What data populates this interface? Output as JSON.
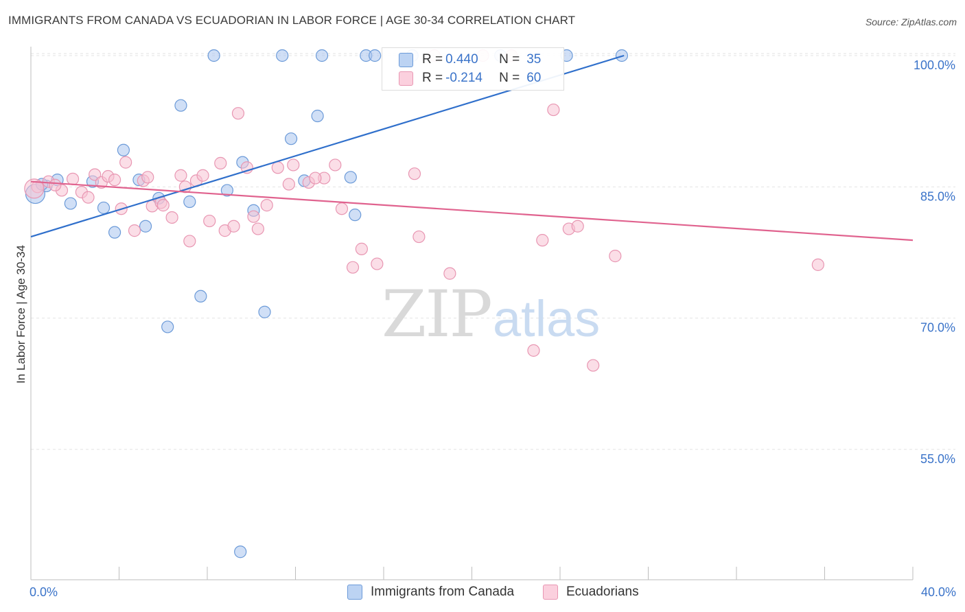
{
  "header": {
    "title": "IMMIGRANTS FROM CANADA VS ECUADORIAN IN LABOR FORCE | AGE 30-34 CORRELATION CHART",
    "source": "Source: ZipAtlas.com"
  },
  "watermark": {
    "zip": "ZIP",
    "atlas": "atlas"
  },
  "legend_top": {
    "rows": [
      {
        "r_label": "R =",
        "r_value": "0.440",
        "n_label": "N =",
        "n_value": "35"
      },
      {
        "r_label": "R =",
        "r_value": "-0.214",
        "n_label": "N =",
        "n_value": "60"
      }
    ]
  },
  "legend_bottom": {
    "items": [
      {
        "label": "Immigrants from Canada"
      },
      {
        "label": "Ecuadorians"
      }
    ]
  },
  "colors": {
    "blue_fill": "#a9c5ee",
    "blue_stroke": "#6b9ad8",
    "blue_line": "#2f6fcb",
    "pink_fill": "#f7c2d3",
    "pink_stroke": "#e896b2",
    "pink_line": "#e0628e",
    "axis_text": "#3a73c9",
    "grid": "#e3e3e3"
  },
  "chart_data": {
    "type": "scatter",
    "title": "IMMIGRANTS FROM CANADA VS ECUADORIAN IN LABOR FORCE | AGE 30-34 CORRELATION CHART",
    "xlabel": "",
    "ylabel": "In Labor Force | Age 30-34",
    "xlim": [
      0,
      40
    ],
    "ylim": [
      42,
      101.5
    ],
    "x_tick_labels": [
      "0.0%",
      "40.0%"
    ],
    "y_ticks": [
      55,
      70,
      85,
      100
    ],
    "y_tick_labels": [
      "55.0%",
      "70.0%",
      "85.0%",
      "100.0%"
    ],
    "grid": true,
    "series": [
      {
        "name": "Immigrants from Canada",
        "color": "blue",
        "r": 0.44,
        "n": 35,
        "trend": {
          "x": [
            0,
            26.9
          ],
          "y": [
            79.3,
            100.0
          ]
        },
        "points": [
          [
            0.2,
            84.2
          ],
          [
            0.7,
            85.1
          ],
          [
            1.2,
            85.8
          ],
          [
            1.8,
            83.1
          ],
          [
            2.8,
            85.6
          ],
          [
            3.3,
            82.6
          ],
          [
            3.8,
            79.8
          ],
          [
            4.2,
            89.2
          ],
          [
            4.9,
            85.8
          ],
          [
            5.2,
            80.5
          ],
          [
            5.8,
            83.7
          ],
          [
            6.2,
            69.0
          ],
          [
            6.8,
            94.3
          ],
          [
            7.2,
            83.3
          ],
          [
            7.7,
            72.5
          ],
          [
            8.3,
            100.0
          ],
          [
            8.9,
            84.6
          ],
          [
            9.5,
            43.3
          ],
          [
            9.6,
            87.8
          ],
          [
            10.1,
            82.3
          ],
          [
            10.6,
            70.7
          ],
          [
            11.4,
            100.0
          ],
          [
            11.8,
            90.5
          ],
          [
            12.4,
            85.7
          ],
          [
            13.2,
            100.0
          ],
          [
            13.0,
            93.1
          ],
          [
            14.5,
            86.1
          ],
          [
            14.7,
            81.8
          ],
          [
            15.2,
            100.0
          ],
          [
            15.6,
            100.0
          ],
          [
            17.3,
            100.0
          ],
          [
            21.3,
            100.0
          ],
          [
            24.3,
            100.0
          ],
          [
            26.8,
            100.0
          ],
          [
            0.5,
            85.3
          ]
        ]
      },
      {
        "name": "Ecuadorians",
        "color": "pink",
        "r": -0.214,
        "n": 60,
        "trend": {
          "x": [
            0,
            40
          ],
          "y": [
            85.6,
            78.9
          ]
        },
        "points": [
          [
            0.3,
            85.0
          ],
          [
            0.8,
            85.6
          ],
          [
            1.4,
            84.6
          ],
          [
            1.9,
            85.9
          ],
          [
            2.3,
            84.4
          ],
          [
            2.6,
            83.8
          ],
          [
            2.9,
            86.4
          ],
          [
            3.2,
            85.5
          ],
          [
            3.5,
            86.2
          ],
          [
            3.8,
            85.8
          ],
          [
            4.1,
            82.5
          ],
          [
            4.3,
            87.8
          ],
          [
            4.7,
            80.0
          ],
          [
            5.1,
            85.7
          ],
          [
            5.3,
            86.1
          ],
          [
            5.5,
            82.8
          ],
          [
            5.9,
            83.2
          ],
          [
            6.0,
            82.9
          ],
          [
            6.4,
            81.5
          ],
          [
            6.8,
            86.3
          ],
          [
            7.0,
            85.0
          ],
          [
            7.2,
            78.8
          ],
          [
            7.5,
            85.7
          ],
          [
            7.8,
            86.3
          ],
          [
            8.1,
            81.1
          ],
          [
            8.6,
            87.7
          ],
          [
            8.8,
            80.0
          ],
          [
            9.2,
            80.5
          ],
          [
            9.4,
            93.4
          ],
          [
            9.8,
            87.2
          ],
          [
            10.1,
            81.6
          ],
          [
            10.3,
            80.2
          ],
          [
            10.7,
            82.9
          ],
          [
            11.2,
            87.2
          ],
          [
            11.7,
            85.3
          ],
          [
            11.9,
            87.5
          ],
          [
            12.6,
            85.5
          ],
          [
            13.3,
            86.0
          ],
          [
            13.8,
            87.5
          ],
          [
            14.1,
            82.5
          ],
          [
            14.6,
            75.8
          ],
          [
            15.0,
            77.9
          ],
          [
            15.7,
            76.2
          ],
          [
            17.4,
            86.5
          ],
          [
            17.6,
            79.3
          ],
          [
            19.0,
            75.1
          ],
          [
            20.5,
            100.0
          ],
          [
            22.8,
            66.3
          ],
          [
            23.2,
            78.9
          ],
          [
            23.7,
            93.8
          ],
          [
            24.4,
            80.2
          ],
          [
            24.8,
            80.5
          ],
          [
            25.5,
            64.6
          ],
          [
            26.5,
            77.1
          ],
          [
            35.7,
            76.1
          ],
          [
            18.3,
            100.0
          ],
          [
            21.8,
            100.0
          ],
          [
            0.15,
            84.8
          ],
          [
            1.1,
            85.2
          ],
          [
            12.9,
            86.0
          ]
        ]
      }
    ]
  }
}
